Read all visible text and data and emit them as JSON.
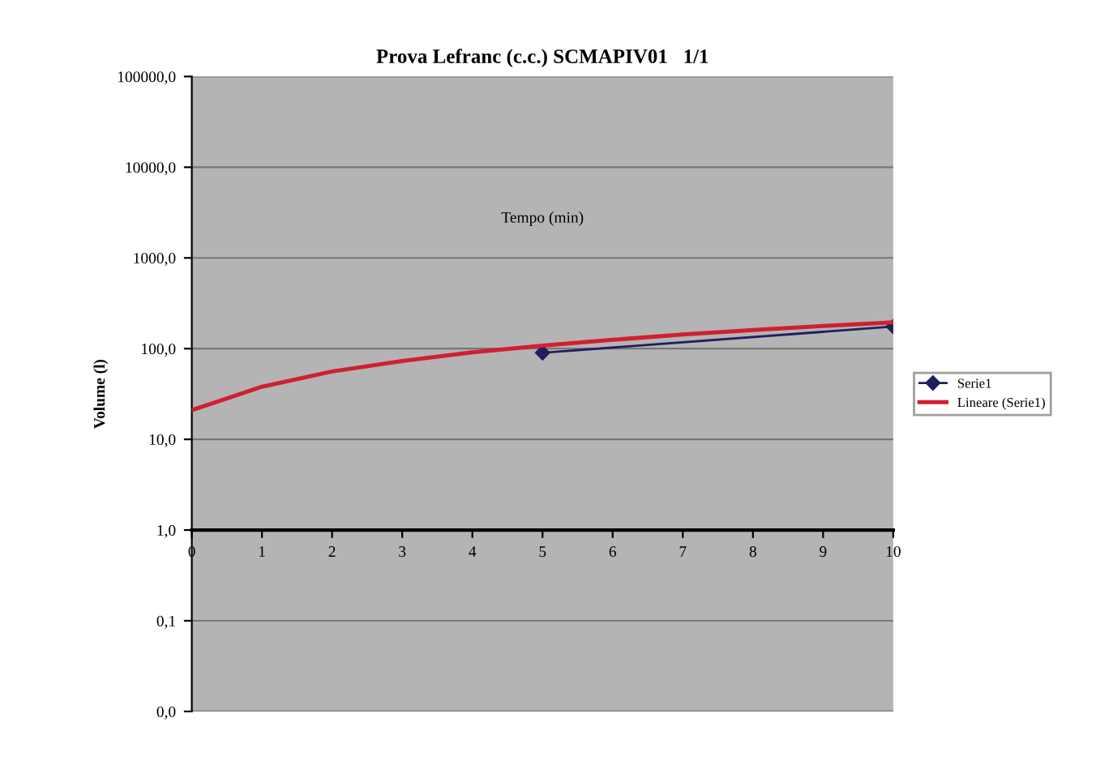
{
  "chart_data": {
    "type": "line",
    "title": "Prova Lefranc (c.c.) SCMAPIV01   1/1",
    "xlabel": "Tempo (min)",
    "ylabel": "Volume (l)",
    "series": [
      {
        "name": "Serie1",
        "color": "#1f1f5f",
        "x": [
          5,
          10
        ],
        "values": [
          90,
          175
        ],
        "marker": "diamond"
      },
      {
        "name": "Lineare (Serie1)",
        "color": "#d02030",
        "x": [
          0,
          1,
          2,
          3,
          4,
          5,
          6,
          7,
          8,
          9,
          10
        ],
        "values": [
          21,
          38,
          56,
          73,
          91,
          108,
          125,
          143,
          160,
          178,
          195
        ],
        "marker": "none"
      }
    ],
    "log": "y",
    "xlim": [
      0,
      10
    ],
    "xticks": [
      0,
      1,
      2,
      3,
      4,
      5,
      6,
      7,
      8,
      9,
      10
    ],
    "ylim": [
      0.01,
      100000
    ],
    "yticks": [
      {
        "value": 0.01,
        "label": "0,0"
      },
      {
        "value": 0.1,
        "label": "0,1"
      },
      {
        "value": 1,
        "label": "1,0"
      },
      {
        "value": 10,
        "label": "10,0"
      },
      {
        "value": 100,
        "label": "100,0"
      },
      {
        "value": 1000,
        "label": "1000,0"
      },
      {
        "value": 10000,
        "label": "10000,0"
      },
      {
        "value": 100000,
        "label": "100000,0"
      }
    ],
    "grid": "y",
    "legend": "right"
  }
}
